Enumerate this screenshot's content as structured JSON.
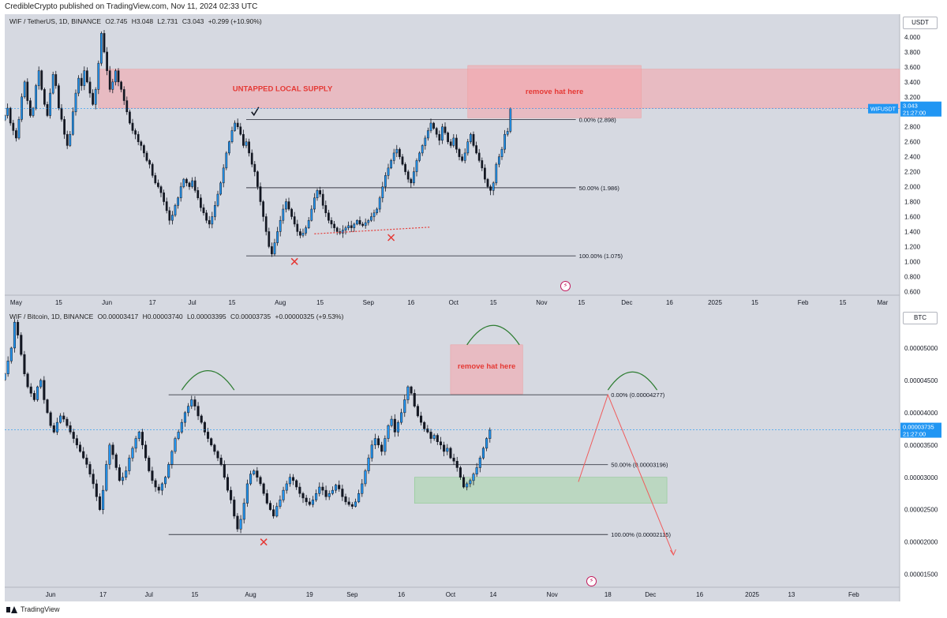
{
  "header": {
    "text": "CredibleCrypto published on TradingView.com, Nov 11, 2024 02:33 UTC"
  },
  "footer": {
    "brand": "TradingView"
  },
  "colors": {
    "bull": "#2196f3",
    "bear": "#131722",
    "pane_bg": "#d6d9e1",
    "supply": "#f4a6ad",
    "demand": "#a5d6a7",
    "arc": "#2e7d32",
    "arrow": "#f05b5b",
    "price_tag": "#2196f3"
  },
  "chart_data": [
    {
      "type": "candlestick",
      "symbol_line": "WIF / TetherUS, 1D, BINANCE",
      "ohlc": {
        "O": "2.745",
        "H": "3.048",
        "L": "2.731",
        "C": "3.043",
        "chg": "+0.299 (+10.90%)"
      },
      "currency": "USDT",
      "ylim": [
        0.55,
        4.2
      ],
      "y_ticks": [
        "0.600",
        "0.800",
        "1.000",
        "1.200",
        "1.400",
        "1.600",
        "1.800",
        "2.000",
        "2.200",
        "2.400",
        "2.600",
        "2.800",
        "3.000",
        "3.200",
        "3.400",
        "3.600",
        "3.800",
        "4.000"
      ],
      "x_ticks": [
        {
          "label": "May",
          "x": "2024-04-30"
        },
        {
          "label": "15",
          "x": "2024-05-15"
        },
        {
          "label": "Jun",
          "x": "2024-06-01"
        },
        {
          "label": "17",
          "x": "2024-06-17"
        },
        {
          "label": "Jul",
          "x": "2024-07-01"
        },
        {
          "label": "15",
          "x": "2024-07-15"
        },
        {
          "label": "Aug",
          "x": "2024-08-01"
        },
        {
          "label": "15",
          "x": "2024-08-15"
        },
        {
          "label": "Sep",
          "x": "2024-09-01"
        },
        {
          "label": "16",
          "x": "2024-09-16"
        },
        {
          "label": "Oct",
          "x": "2024-10-01"
        },
        {
          "label": "15",
          "x": "2024-10-15"
        },
        {
          "label": "Nov",
          "x": "2024-11-01"
        },
        {
          "label": "15",
          "x": "2024-11-15"
        },
        {
          "label": "Dec",
          "x": "2024-12-01"
        },
        {
          "label": "16",
          "x": "2024-12-16"
        },
        {
          "label": "2025",
          "x": "2025-01-01"
        },
        {
          "label": "15",
          "x": "2025-01-15"
        },
        {
          "label": "Feb",
          "x": "2025-02-01"
        },
        {
          "label": "15",
          "x": "2025-02-15"
        },
        {
          "label": "Mar",
          "x": "2025-03-01"
        }
      ],
      "x_range": [
        "2024-04-26",
        "2025-03-07"
      ],
      "close_series": {
        "start": "2024-04-26",
        "values": [
          2.95,
          3.05,
          2.85,
          2.75,
          2.65,
          2.9,
          3.2,
          3.4,
          3.15,
          2.95,
          3.05,
          3.35,
          3.55,
          3.3,
          3.1,
          2.95,
          3.25,
          3.5,
          3.35,
          3.05,
          2.9,
          2.7,
          2.55,
          2.7,
          3.0,
          3.25,
          3.45,
          3.35,
          3.55,
          3.4,
          3.25,
          3.1,
          3.3,
          3.65,
          4.05,
          3.8,
          3.55,
          3.3,
          3.4,
          3.55,
          3.4,
          3.3,
          3.15,
          3.0,
          2.85,
          2.75,
          2.7,
          2.6,
          2.55,
          2.45,
          2.35,
          2.3,
          2.15,
          2.05,
          2.0,
          1.92,
          1.8,
          1.68,
          1.55,
          1.62,
          1.75,
          1.85,
          2.0,
          2.1,
          2.05,
          2.0,
          2.08,
          1.95,
          1.85,
          1.72,
          1.65,
          1.55,
          1.5,
          1.6,
          1.75,
          1.9,
          2.05,
          2.25,
          2.45,
          2.6,
          2.75,
          2.85,
          2.8,
          2.7,
          2.55,
          2.6,
          2.45,
          2.3,
          2.2,
          2.0,
          1.8,
          1.6,
          1.4,
          1.2,
          1.1,
          1.25,
          1.4,
          1.55,
          1.7,
          1.8,
          1.7,
          1.6,
          1.5,
          1.4,
          1.35,
          1.38,
          1.45,
          1.55,
          1.7,
          1.85,
          1.95,
          1.9,
          1.75,
          1.65,
          1.55,
          1.5,
          1.45,
          1.4,
          1.38,
          1.42,
          1.45,
          1.48,
          1.45,
          1.5,
          1.55,
          1.5,
          1.48,
          1.52,
          1.55,
          1.6,
          1.65,
          1.7,
          1.85,
          2.0,
          2.15,
          2.25,
          2.35,
          2.45,
          2.5,
          2.4,
          2.3,
          2.2,
          2.1,
          2.05,
          2.2,
          2.35,
          2.45,
          2.55,
          2.65,
          2.75,
          2.85,
          2.78,
          2.7,
          2.62,
          2.8,
          2.72,
          2.6,
          2.55,
          2.65,
          2.5,
          2.4,
          2.35,
          2.45,
          2.6,
          2.7,
          2.55,
          2.45,
          2.35,
          2.25,
          2.1,
          2.0,
          1.95,
          2.05,
          2.3,
          2.4,
          2.5,
          2.7,
          2.74,
          3.043
        ]
      },
      "fib_levels": [
        {
          "label": "0.00% (2.898)",
          "y": 2.898
        },
        {
          "label": "50.00% (1.986)",
          "y": 1.986
        },
        {
          "label": "100.00% (1.075)",
          "y": 1.075
        }
      ],
      "zones": [
        {
          "label": "UNTAPPED LOCAL SUPPLY",
          "x0": "2024-05-29",
          "x1": "2025-03-07",
          "y0": 3.05,
          "y1": 3.57
        },
        {
          "label": "remove hat here",
          "x0": "2024-10-06",
          "x1": "2024-12-06",
          "y0": 2.92,
          "y1": 3.62
        }
      ],
      "markers": [
        {
          "type": "check",
          "x": "2024-07-23",
          "y": 3.0
        },
        {
          "type": "cross",
          "x": "2024-08-06",
          "y": 1.0
        },
        {
          "type": "cross",
          "x": "2024-09-09",
          "y": 1.32
        }
      ],
      "support_trend": {
        "from": {
          "x": "2024-08-13",
          "y": 1.37
        },
        "to": {
          "x": "2024-09-23",
          "y": 1.46
        }
      },
      "current_price": {
        "value": 3.043,
        "label": "3.043",
        "countdown": "21:27:00",
        "tag": "WIFUSDT"
      }
    },
    {
      "type": "candlestick",
      "symbol_line": "WIF / Bitcoin, 1D, BINANCE",
      "ohlc": {
        "O": "0.00003417",
        "H": "0.00003740",
        "L": "0.00003395",
        "C": "0.00003735",
        "chg": "+0.00000325 (+9.53%)"
      },
      "currency": "BTC",
      "ylim": [
        1.3e-05,
        5.5e-05
      ],
      "y_ticks": [
        "0.00001500",
        "0.00002000",
        "0.00002500",
        "0.00003000",
        "0.00003500",
        "0.00004000",
        "0.00004500",
        "0.00005000"
      ],
      "x_ticks": [
        {
          "label": "Jun",
          "x": "2024-06-01"
        },
        {
          "label": "17",
          "x": "2024-06-17"
        },
        {
          "label": "Jul",
          "x": "2024-07-01"
        },
        {
          "label": "15",
          "x": "2024-07-15"
        },
        {
          "label": "Aug",
          "x": "2024-08-01"
        },
        {
          "label": "19",
          "x": "2024-08-19"
        },
        {
          "label": "Sep",
          "x": "2024-09-01"
        },
        {
          "label": "16",
          "x": "2024-09-16"
        },
        {
          "label": "Oct",
          "x": "2024-10-01"
        },
        {
          "label": "14",
          "x": "2024-10-14"
        },
        {
          "label": "Nov",
          "x": "2024-11-01"
        },
        {
          "label": "18",
          "x": "2024-11-18"
        },
        {
          "label": "Dec",
          "x": "2024-12-01"
        },
        {
          "label": "16",
          "x": "2024-12-16"
        },
        {
          "label": "2025",
          "x": "2025-01-01"
        },
        {
          "label": "13",
          "x": "2025-01-13"
        },
        {
          "label": "Feb",
          "x": "2025-02-01"
        }
      ],
      "x_range": [
        "2024-05-18",
        "2025-02-15"
      ],
      "close_series": {
        "start": "2024-05-18",
        "values": [
          4.6e-05,
          4.8e-05,
          5e-05,
          5.4e-05,
          5.2e-05,
          4.9e-05,
          4.6e-05,
          4.4e-05,
          4.3e-05,
          4.2e-05,
          4.4e-05,
          4.5e-05,
          4.2e-05,
          4e-05,
          3.8e-05,
          3.7e-05,
          3.85e-05,
          3.95e-05,
          3.9e-05,
          3.8e-05,
          3.7e-05,
          3.6e-05,
          3.5e-05,
          3.4e-05,
          3.3e-05,
          3.2e-05,
          3.05e-05,
          2.9e-05,
          2.7e-05,
          2.5e-05,
          2.8e-05,
          3.2e-05,
          3.5e-05,
          3.35e-05,
          3.15e-05,
          2.95e-05,
          3e-05,
          3.1e-05,
          3.3e-05,
          3.45e-05,
          3.6e-05,
          3.7e-05,
          3.5e-05,
          3.3e-05,
          3.1e-05,
          2.95e-05,
          2.85e-05,
          2.8e-05,
          2.9e-05,
          3e-05,
          3.2e-05,
          3.4e-05,
          3.6e-05,
          3.7e-05,
          3.85e-05,
          4e-05,
          4.1e-05,
          4.2e-05,
          4.1e-05,
          3.95e-05,
          3.85e-05,
          3.7e-05,
          3.6e-05,
          3.5e-05,
          3.4e-05,
          3.3e-05,
          3.2e-05,
          3e-05,
          2.8e-05,
          2.65e-05,
          2.4e-05,
          2.2e-05,
          2.35e-05,
          2.6e-05,
          2.9e-05,
          3.05e-05,
          3.1e-05,
          3e-05,
          2.9e-05,
          2.75e-05,
          2.6e-05,
          2.5e-05,
          2.4e-05,
          2.55e-05,
          2.65e-05,
          2.8e-05,
          2.9e-05,
          3e-05,
          2.95e-05,
          2.85e-05,
          2.75e-05,
          2.68e-05,
          2.62e-05,
          2.58e-05,
          2.65e-05,
          2.75e-05,
          2.85e-05,
          2.8e-05,
          2.7e-05,
          2.75e-05,
          2.8e-05,
          2.88e-05,
          2.82e-05,
          2.7e-05,
          2.62e-05,
          2.58e-05,
          2.55e-05,
          2.62e-05,
          2.75e-05,
          2.9e-05,
          3.1e-05,
          3.3e-05,
          3.5e-05,
          3.6e-05,
          3.5e-05,
          3.4e-05,
          3.6e-05,
          3.8e-05,
          3.9e-05,
          3.7e-05,
          3.85e-05,
          4e-05,
          4.2e-05,
          4.4e-05,
          4.3e-05,
          4.1e-05,
          3.95e-05,
          3.85e-05,
          3.75e-05,
          3.7e-05,
          3.6e-05,
          3.65e-05,
          3.55e-05,
          3.5e-05,
          3.4e-05,
          3.45e-05,
          3.3e-05,
          3.25e-05,
          3.15e-05,
          3e-05,
          2.85e-05,
          2.9e-05,
          2.95e-05,
          3.05e-05,
          3.15e-05,
          3.3e-05,
          3.45e-05,
          3.6e-05,
          3.73e-05
        ]
      },
      "fib_levels": [
        {
          "label": "0.00% (0.00004277)",
          "y": 4.277e-05
        },
        {
          "label": "50.00% (0.00003196)",
          "y": 3.196e-05
        },
        {
          "label": "100.00% (0.00002115)",
          "y": 2.115e-05
        }
      ],
      "zones": [
        {
          "label": "remove hat here",
          "x0": "2024-10-01",
          "x1": "2024-10-23",
          "y0": 4.29e-05,
          "y1": 5.05e-05
        },
        {
          "label": "",
          "x0": "2024-09-20",
          "x1": "2024-12-06",
          "y0": 2.6e-05,
          "y1": 3e-05,
          "kind": "demand"
        }
      ],
      "arcs": [
        {
          "x0": "2024-07-11",
          "x1": "2024-07-27",
          "y": 4.35e-05,
          "h": 3e-06
        },
        {
          "x0": "2024-10-06",
          "x1": "2024-10-22",
          "y": 5.05e-05,
          "h": 3e-06
        },
        {
          "x0": "2024-11-18",
          "x1": "2024-12-03",
          "y": 4.35e-05,
          "h": 2.8e-06
        }
      ],
      "markers": [
        {
          "type": "cross",
          "x": "2024-08-05",
          "y": 2e-05
        }
      ],
      "projection": [
        {
          "x": "2024-11-09",
          "y": 2.93e-05
        },
        {
          "x": "2024-11-18",
          "y": 4.277e-05
        },
        {
          "x": "2024-12-08",
          "y": 1.8e-05
        }
      ],
      "current_price": {
        "value": 3.735e-05,
        "label": "0.00003735",
        "countdown": "21:27:00"
      }
    }
  ]
}
